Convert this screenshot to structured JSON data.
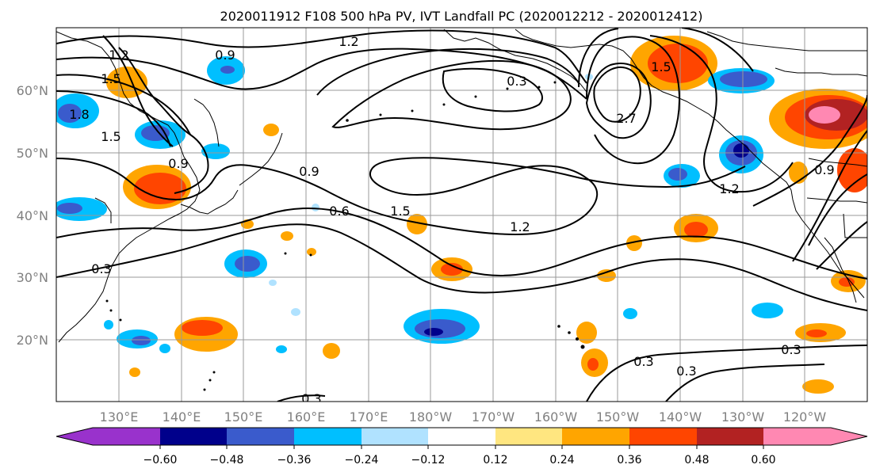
{
  "title": "2020011912 F108 500 hPa PV, IVT Landfall PC (2020012212 - 2020012412)",
  "map": {
    "lon_labels": [
      "130°E",
      "140°E",
      "150°E",
      "160°E",
      "170°E",
      "180°W",
      "170°W",
      "160°W",
      "150°W",
      "140°W",
      "130°W",
      "120°W"
    ],
    "lat_labels": [
      "60°N",
      "50°N",
      "40°N",
      "30°N",
      "20°N"
    ],
    "contour_labels": [
      "1.2",
      "0.9",
      "1.2",
      "0.3",
      "1.5",
      "2.7",
      "1.5",
      "1.2",
      "0.9",
      "0.6",
      "1.5",
      "1.2",
      "0.3",
      "0.3",
      "0.3",
      "0.3",
      "0.3",
      "0.9",
      "1.8",
      "1.5",
      "0.9"
    ]
  },
  "colorbar": {
    "colors": [
      "#9932cc",
      "#00008b",
      "#3a5bcc",
      "#00bfff",
      "#b0e2ff",
      "#ffffff",
      "#ffe680",
      "#ffa500",
      "#ff4500",
      "#b22222",
      "#ff88b2"
    ],
    "tick_labels": [
      "−0.60",
      "−0.48",
      "−0.36",
      "−0.24",
      "−0.12",
      "0.12",
      "0.24",
      "0.36",
      "0.48",
      "0.60"
    ]
  }
}
